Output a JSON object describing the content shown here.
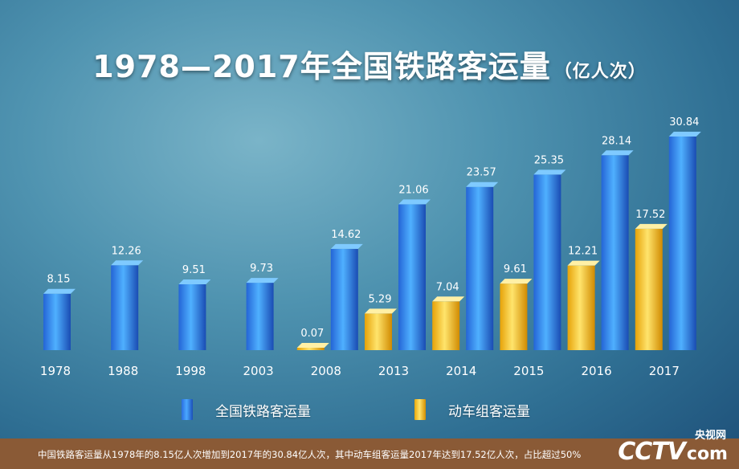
{
  "title": "1978—2017年全国铁路客运量",
  "unit": "（亿人次）",
  "chart_data": {
    "type": "bar",
    "title": "1978—2017年全国铁路客运量（亿人次）",
    "categories": [
      "1978",
      "1988",
      "1998",
      "2003",
      "2008",
      "2013",
      "2014",
      "2015",
      "2016",
      "2017"
    ],
    "series": [
      {
        "name": "全国铁路客运量",
        "color": "#2f7fe6",
        "values": [
          8.15,
          12.26,
          9.51,
          9.73,
          14.62,
          21.06,
          23.57,
          25.35,
          28.14,
          30.84
        ]
      },
      {
        "name": "动车组客运量",
        "color": "#f6c21a",
        "values": [
          null,
          null,
          null,
          null,
          0.07,
          5.29,
          7.04,
          9.61,
          12.21,
          17.52
        ]
      }
    ],
    "ylim": [
      0,
      32
    ],
    "grid": false,
    "legend_position": "bottom"
  },
  "footer": {
    "note": "中国铁路客运量从1978年的8.15亿人次增加到2017年的30.84亿人次，其中动车组客运量2017年达到17.52亿人次，占比超过50%",
    "logo_text": "CCTV",
    "logo_suffix": "com",
    "site_name": "央视网"
  }
}
